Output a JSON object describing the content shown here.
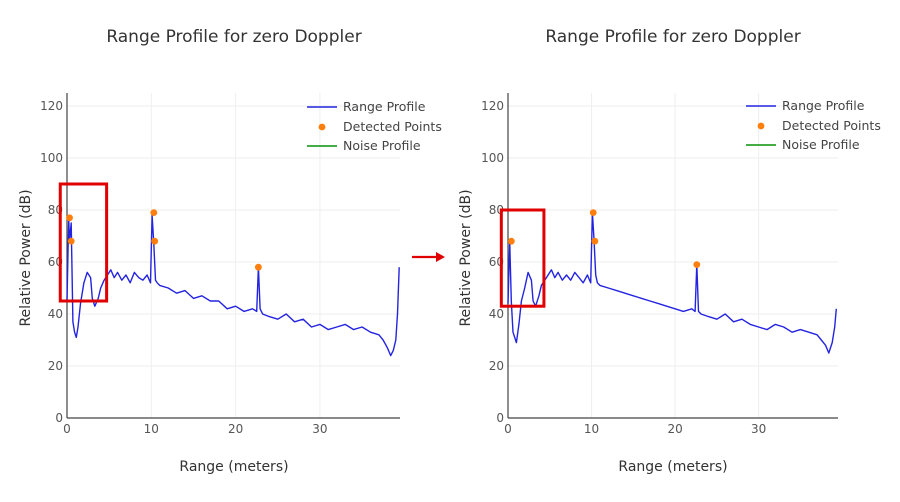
{
  "colors": {
    "range_profile": "#2424e0",
    "detected_points": "#ff7f0e",
    "noise_profile": "#2ca02c",
    "highlight_box": "#e00000",
    "arrow": "#e00000",
    "grid": "#eeeeee"
  },
  "arrow": {
    "direction": "right",
    "color": "#e00000"
  },
  "chart_data": [
    {
      "type": "line",
      "title": "Range Profile for zero Doppler",
      "xlabel": "Range (meters)",
      "ylabel": "Relative Power (dB)",
      "xlim": [
        0,
        39.5
      ],
      "ylim": [
        0,
        125
      ],
      "xticks": [
        "0",
        "10",
        "20",
        "30"
      ],
      "yticks": [
        "0",
        "20",
        "40",
        "60",
        "80",
        "100",
        "120"
      ],
      "grid": true,
      "legend": {
        "position": "top-right",
        "entries": [
          "Range Profile",
          "Detected Points",
          "Noise Profile"
        ]
      },
      "highlight": {
        "x_range": [
          -0.8,
          4.7
        ],
        "y_range": [
          45,
          90
        ]
      },
      "series": [
        {
          "name": "Range Profile",
          "style": "line",
          "x": [
            0,
            0.2,
            0.3,
            0.5,
            0.7,
            0.9,
            1.1,
            1.3,
            1.6,
            2.0,
            2.4,
            2.8,
            3.0,
            3.3,
            3.7,
            4.0,
            4.4,
            4.8,
            5.2,
            5.6,
            6,
            6.5,
            7,
            7.5,
            8,
            8.5,
            9,
            9.5,
            9.9,
            10.1,
            10.3,
            10.5,
            10.7,
            11,
            12,
            13,
            14,
            15,
            16,
            17,
            18,
            19,
            20,
            21,
            22,
            22.5,
            22.7,
            22.9,
            23.2,
            24,
            25,
            26,
            27,
            28,
            29,
            30,
            31,
            32,
            33,
            34,
            35,
            36,
            37,
            37.5,
            38,
            38.4,
            38.7,
            39,
            39.2,
            39.4
          ],
          "y": [
            45,
            77,
            68,
            75,
            37,
            33,
            31,
            35,
            44,
            52,
            56,
            54,
            46,
            43,
            46,
            50,
            53,
            55,
            57,
            54,
            56,
            53,
            55,
            52,
            56,
            54,
            53,
            55,
            52,
            78,
            67,
            53,
            52,
            51,
            50,
            48,
            49,
            46,
            47,
            45,
            45,
            42,
            43,
            41,
            42,
            41,
            58,
            42,
            40,
            39,
            38,
            40,
            37,
            38,
            35,
            36,
            34,
            35,
            36,
            34,
            35,
            33,
            32,
            30,
            27,
            24,
            26,
            30,
            40,
            58
          ]
        },
        {
          "name": "Detected Points",
          "style": "markers",
          "x": [
            0.3,
            0.5,
            10.3,
            10.4,
            22.7
          ],
          "y": [
            77,
            68,
            79,
            68,
            58
          ]
        },
        {
          "name": "Noise Profile",
          "style": "line",
          "x": [],
          "y": []
        }
      ]
    },
    {
      "type": "line",
      "title": "Range Profile for zero Doppler",
      "xlabel": "Range (meters)",
      "ylabel": "Relative Power (dB)",
      "xlim": [
        0,
        39.5
      ],
      "ylim": [
        0,
        125
      ],
      "xticks": [
        "0",
        "10",
        "20",
        "30"
      ],
      "yticks": [
        "0",
        "20",
        "40",
        "60",
        "80",
        "100",
        "120"
      ],
      "grid": true,
      "legend": {
        "position": "top-right",
        "entries": [
          "Range Profile",
          "Detected Points",
          "Noise Profile"
        ]
      },
      "highlight": {
        "x_range": [
          -0.8,
          4.3
        ],
        "y_range": [
          43,
          80
        ]
      },
      "series": [
        {
          "name": "Range Profile",
          "style": "line",
          "x": [
            0,
            0.2,
            0.4,
            0.6,
            0.8,
            1.0,
            1.3,
            1.6,
            2.0,
            2.4,
            2.8,
            3.0,
            3.3,
            3.7,
            4.0,
            4.4,
            4.8,
            5.2,
            5.6,
            6,
            6.5,
            7,
            7.5,
            8,
            8.5,
            9,
            9.5,
            9.9,
            10.1,
            10.3,
            10.5,
            10.7,
            11,
            12,
            13,
            14,
            15,
            16,
            17,
            18,
            19,
            20,
            21,
            22,
            22.4,
            22.6,
            22.8,
            23.1,
            24,
            25,
            26,
            27,
            28,
            29,
            30,
            31,
            32,
            33,
            34,
            35,
            36,
            37,
            37.5,
            38,
            38.4,
            38.8,
            39.1,
            39.3
          ],
          "y": [
            44,
            68,
            45,
            33,
            31,
            29,
            36,
            45,
            50,
            56,
            53,
            45,
            43,
            47,
            51,
            53,
            55,
            57,
            54,
            56,
            53,
            55,
            53,
            56,
            54,
            52,
            55,
            52,
            79,
            68,
            55,
            52,
            51,
            50,
            49,
            48,
            47,
            46,
            45,
            44,
            43,
            42,
            41,
            42,
            41,
            59,
            41,
            40,
            39,
            38,
            40,
            37,
            38,
            36,
            35,
            34,
            36,
            35,
            33,
            34,
            33,
            32,
            30,
            28,
            25,
            29,
            35,
            42
          ]
        },
        {
          "name": "Detected Points",
          "style": "markers",
          "x": [
            0.4,
            10.2,
            10.4,
            22.6
          ],
          "y": [
            68,
            79,
            68,
            59
          ]
        },
        {
          "name": "Noise Profile",
          "style": "line",
          "x": [],
          "y": []
        }
      ]
    }
  ]
}
